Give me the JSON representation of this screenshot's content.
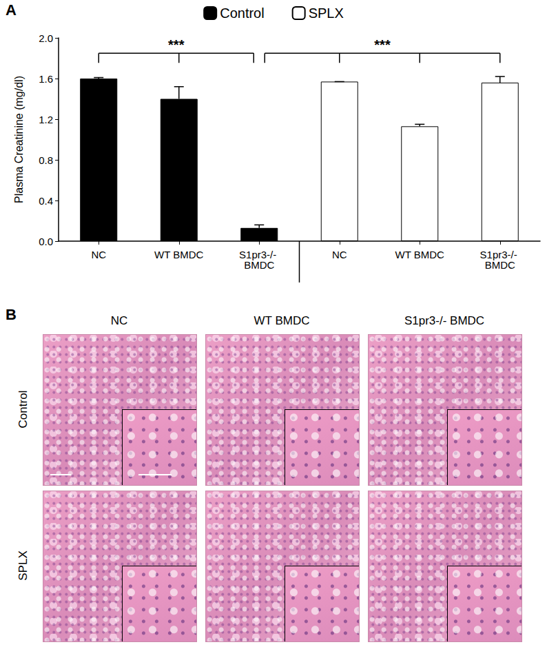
{
  "chart_data": {
    "type": "bar",
    "panel": "A",
    "ylabel": "Plasma Creatinine (mg/dl)",
    "categories": [
      "NC",
      "WT BMDC",
      "S1pr3-/- BMDC",
      "NC",
      "WT BMDC",
      "S1pr3-/- BMDC"
    ],
    "series": [
      {
        "name": "Control",
        "color": "#000000",
        "values": [
          1.6,
          1.4,
          0.13,
          null,
          null,
          null
        ],
        "errors": [
          0.01,
          0.12,
          0.03,
          null,
          null,
          null
        ]
      },
      {
        "name": "SPLX",
        "color": "#ffffff",
        "values": [
          null,
          null,
          null,
          1.57,
          1.13,
          1.56
        ],
        "errors": [
          null,
          null,
          null,
          0,
          0.02,
          0.06
        ]
      }
    ],
    "ylim": [
      0,
      2
    ],
    "yticks": [
      {
        "value": 0,
        "label": "0.0"
      },
      0.4,
      0.8,
      1.2,
      1.6,
      {
        "value": 2,
        "label": "2.0"
      }
    ],
    "legend": "top",
    "grid": false,
    "annotations": [
      {
        "text": "***",
        "from": 0,
        "to": 2,
        "y": 1.85
      },
      {
        "text": "***",
        "from": 2,
        "to": 5,
        "y": 1.85
      }
    ]
  },
  "panel_b": {
    "label": "B",
    "columns": [
      "NC",
      "WT BMDC",
      "S1pr3-/- BMDC"
    ],
    "rows": [
      "Control",
      "SPLX"
    ]
  }
}
